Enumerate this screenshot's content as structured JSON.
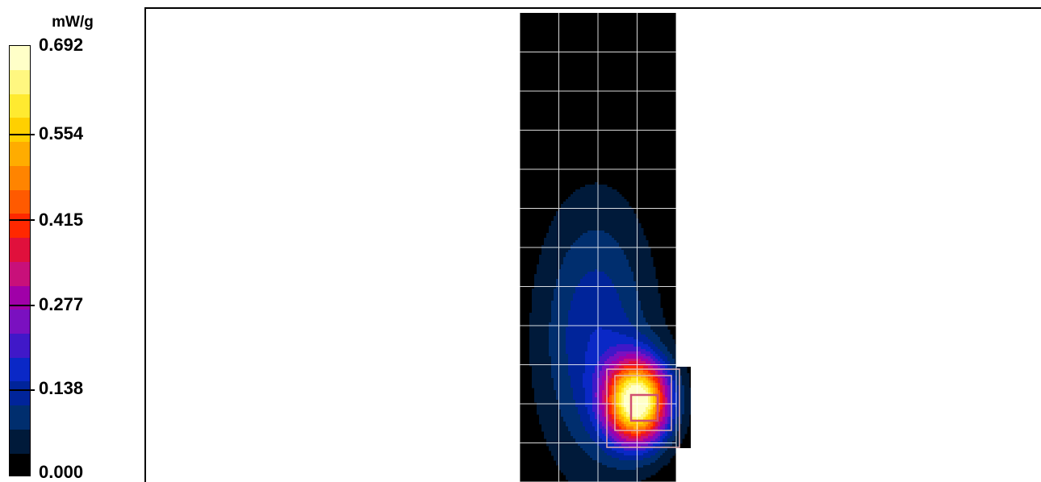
{
  "chart_data": {
    "type": "heatmap",
    "title": "",
    "unit": "mW/g",
    "colorbar": {
      "min": 0.0,
      "max": 0.692,
      "tick_labels": [
        "0.692",
        "0.554",
        "0.415",
        "0.277",
        "0.138",
        "0.000"
      ],
      "tick_values": [
        0.692,
        0.554,
        0.415,
        0.277,
        0.138,
        0.0
      ],
      "colors_low_to_high": [
        "#000000",
        "#001a3a",
        "#002e6e",
        "#00249a",
        "#0a28c6",
        "#4018c8",
        "#7a10c0",
        "#a000a8",
        "#c8107a",
        "#e0103c",
        "#ff2800",
        "#ff5a00",
        "#ff8400",
        "#ffac00",
        "#ffd000",
        "#ffea30",
        "#fff780",
        "#ffffc8"
      ]
    },
    "grid": {
      "columns": 4,
      "rows": 12
    },
    "peak_value_approx": 0.692,
    "cube_overlay": true,
    "annotations": []
  }
}
